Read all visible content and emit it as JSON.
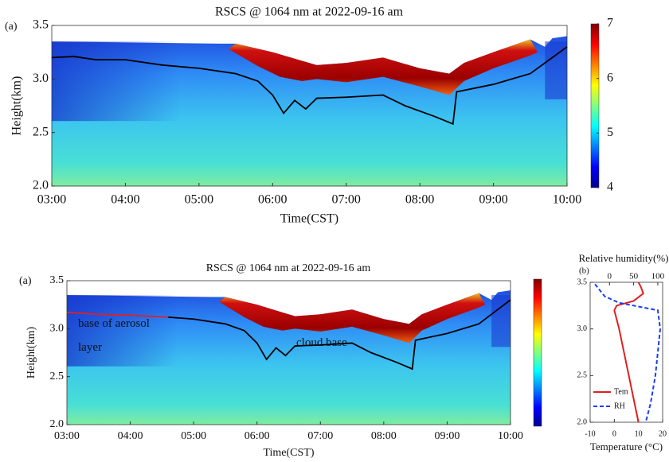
{
  "chart_data": [
    {
      "type": "heatmap",
      "panel": "(a)",
      "title": "RSCS @ 1064 nm at 2022-09-16 am",
      "xlabel": "Time(CST)",
      "ylabel": "Height(km)",
      "xlim": [
        3,
        10
      ],
      "xticks": [
        {
          "value": 3,
          "label": "03:00"
        },
        {
          "value": 4,
          "label": "04:00"
        },
        {
          "value": 5,
          "label": "05:00"
        },
        {
          "value": 6,
          "label": "06:00"
        },
        {
          "value": 7,
          "label": "07:00"
        },
        {
          "value": 8,
          "label": "08:00"
        },
        {
          "value": 9,
          "label": "09:00"
        },
        {
          "value": 10,
          "label": "10:00"
        }
      ],
      "ylim": [
        2,
        3.5
      ],
      "yticks": [
        {
          "value": 2,
          "label": "2.0"
        },
        {
          "value": 2.5,
          "label": "2.5"
        },
        {
          "value": 3,
          "label": "3.0"
        },
        {
          "value": 3.5,
          "label": "3.5"
        }
      ],
      "clim": [
        4,
        7
      ],
      "cticks": [
        4,
        5,
        6,
        7
      ],
      "colormap": "jet",
      "series": [
        {
          "color": "#000000",
          "x": [
            3.0,
            3.3,
            3.6,
            4.0,
            4.5,
            5.0,
            5.5,
            5.8,
            6.0,
            6.15,
            6.3,
            6.45,
            6.6,
            7.0,
            7.5,
            7.8,
            8.2,
            8.45,
            8.5,
            9.0,
            9.5,
            9.8,
            10.0
          ],
          "values": [
            3.2,
            3.21,
            3.18,
            3.18,
            3.13,
            3.1,
            3.05,
            2.98,
            2.85,
            2.68,
            2.8,
            2.72,
            2.82,
            2.83,
            2.85,
            2.75,
            2.65,
            2.58,
            2.88,
            2.95,
            3.05,
            3.2,
            3.3
          ]
        }
      ]
    },
    {
      "type": "heatmap",
      "panel": "(a)",
      "title": "RSCS @ 1064 nm at 2022-09-16 am",
      "xlabel": "Time(CST)",
      "ylabel": "Height(km)",
      "xlim": [
        3,
        10
      ],
      "xticks": [
        {
          "value": 3,
          "label": "03:00"
        },
        {
          "value": 4,
          "label": "04:00"
        },
        {
          "value": 5,
          "label": "05:00"
        },
        {
          "value": 6,
          "label": "06:00"
        },
        {
          "value": 7,
          "label": "07:00"
        },
        {
          "value": 8,
          "label": "08:00"
        },
        {
          "value": 9,
          "label": "09:00"
        },
        {
          "value": 10,
          "label": "10:00"
        }
      ],
      "ylim": [
        2,
        3.5
      ],
      "yticks": [
        {
          "value": 2,
          "label": "2.0"
        },
        {
          "value": 2.5,
          "label": "2.5"
        },
        {
          "value": 3,
          "label": "3.0"
        },
        {
          "value": 3.5,
          "label": "3.5"
        }
      ],
      "colormap": "jet",
      "annotations": [
        "base of aerosol layer",
        "cloud base"
      ],
      "series": [
        {
          "color": "#e02020",
          "x": [
            3.0,
            3.5,
            4.0,
            4.3,
            4.6
          ],
          "values": [
            3.17,
            3.15,
            3.14,
            3.13,
            3.12
          ]
        },
        {
          "color": "#000000",
          "x": [
            4.6,
            5.0,
            5.5,
            5.8,
            6.0,
            6.15,
            6.3,
            6.45,
            6.6,
            7.0,
            7.5,
            7.8,
            8.2,
            8.45,
            8.5,
            9.0,
            9.5,
            9.8,
            10.0
          ],
          "values": [
            3.12,
            3.1,
            3.05,
            2.98,
            2.85,
            2.68,
            2.8,
            2.72,
            2.82,
            2.83,
            2.85,
            2.75,
            2.65,
            2.58,
            2.88,
            2.95,
            3.05,
            3.2,
            3.3
          ]
        }
      ]
    },
    {
      "type": "line",
      "panel": "(b)",
      "x2label": "Relative humidity(%)",
      "xlabel": "Temperature (°C)",
      "xlim": [
        -10,
        20
      ],
      "xticks": [
        -10,
        0,
        10,
        20
      ],
      "x2lim": [
        -40,
        110
      ],
      "x2ticks": [
        0,
        50,
        100
      ],
      "ylim": [
        2,
        3.5
      ],
      "yticks": [
        {
          "value": 2,
          "label": "2.0"
        },
        {
          "value": 2.5,
          "label": "2.5"
        },
        {
          "value": 3,
          "label": "3.0"
        },
        {
          "value": 3.5,
          "label": "3.5"
        }
      ],
      "legend": "lower left",
      "series": [
        {
          "name": "Tem",
          "color": "#e02020",
          "x": [
            10,
            11,
            12,
            8,
            1,
            0,
            2,
            6,
            10
          ],
          "values": [
            3.5,
            3.45,
            3.38,
            3.3,
            3.25,
            3.2,
            3.0,
            2.5,
            2.0
          ]
        },
        {
          "name": "RH",
          "color": "#1a3ef0",
          "axis": "x2",
          "dash": true,
          "x": [
            -30,
            -10,
            20,
            80,
            100,
            105,
            95,
            85,
            75
          ],
          "values": [
            3.48,
            3.35,
            3.28,
            3.22,
            3.2,
            3.0,
            2.5,
            2.2,
            2.0
          ]
        }
      ]
    }
  ]
}
